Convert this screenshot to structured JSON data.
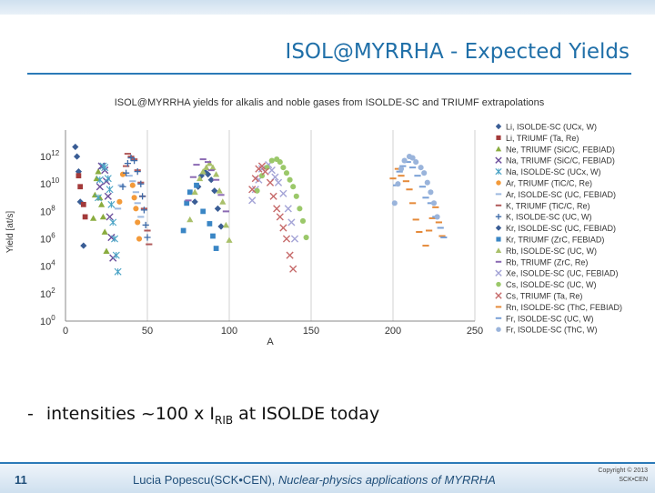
{
  "slide": {
    "title": "ISOL@MYRRHA - Expected Yields",
    "bullet_dash": "-",
    "bullet_text": "intensities ~100 x I",
    "bullet_sub": "RIB",
    "bullet_tail": " at ISOLDE today",
    "slide_number": "11",
    "footer_author": "Lucia Popescu(SCK•CEN),",
    "footer_subject": " Nuclear-physics applications of MYRRHA",
    "copyright_line1": "Copyright © 2013",
    "copyright_line2": "SCK•CEN"
  },
  "colors": {
    "accent": "#2b7ab8",
    "title": "#1f6fa8"
  },
  "chart_data": {
    "type": "scatter",
    "title": "ISOL@MYRRHA yields for alkalis and noble gases from ISOLDE-SC and TRIUMF extrapolations",
    "xlabel": "A",
    "ylabel": "Yield [at/s]",
    "xlim": [
      0,
      250
    ],
    "ylim": [
      0,
      13
    ],
    "x_ticks": [
      0,
      50,
      100,
      150,
      200,
      250
    ],
    "y_ticks": [
      {
        "exp": 0,
        "label": "10",
        "sup": "0"
      },
      {
        "exp": 2,
        "label": "10",
        "sup": "2"
      },
      {
        "exp": 4,
        "label": "10",
        "sup": "4"
      },
      {
        "exp": 6,
        "label": "10",
        "sup": "6"
      },
      {
        "exp": 8,
        "label": "10",
        "sup": "8"
      },
      {
        "exp": 10,
        "label": "10",
        "sup": "10"
      },
      {
        "exp": 12,
        "label": "10",
        "sup": "12"
      }
    ],
    "y_scale": "log10",
    "grid": "vertical",
    "legend_position": "right",
    "series": [
      {
        "name": "Li, ISOLDE-SC (UCx, W)",
        "color": "#3a5d95",
        "marker": "diamond",
        "points": [
          [
            6,
            12.7
          ],
          [
            7,
            12.0
          ],
          [
            8,
            10.9
          ],
          [
            9,
            8.7
          ],
          [
            11,
            5.5
          ]
        ]
      },
      {
        "name": "Li, TRIUMF (Ta, Re)",
        "color": "#a33a3a",
        "marker": "square",
        "points": [
          [
            8,
            10.6
          ],
          [
            9,
            9.8
          ],
          [
            11,
            8.5
          ],
          [
            12,
            7.6
          ]
        ]
      },
      {
        "name": "Ne, TRIUMF (SiC/C, FEBIAD)",
        "color": "#8aac3f",
        "marker": "triangle",
        "points": [
          [
            17,
            7.5
          ],
          [
            18,
            9.2
          ],
          [
            19,
            10.4
          ],
          [
            20,
            10.9
          ],
          [
            21,
            9.0
          ],
          [
            22,
            8.5
          ],
          [
            23,
            7.6
          ],
          [
            24,
            6.5
          ],
          [
            25,
            5.1
          ]
        ]
      },
      {
        "name": "Na, TRIUMF (SiC/C, FEBIAD)",
        "color": "#6b4e9b",
        "marker": "x",
        "points": [
          [
            21,
            9.8
          ],
          [
            22,
            11.3
          ],
          [
            24,
            11.0
          ],
          [
            25,
            10.2
          ],
          [
            26,
            9.1
          ],
          [
            27,
            7.6
          ],
          [
            28,
            6.1
          ],
          [
            29,
            4.6
          ]
        ]
      },
      {
        "name": "Na, ISOLDE-SC (UCx, W)",
        "color": "#4aa3c5",
        "marker": "star",
        "points": [
          [
            20,
            9.0
          ],
          [
            21,
            10.3
          ],
          [
            23,
            11.3
          ],
          [
            24,
            11.2
          ],
          [
            26,
            10.4
          ],
          [
            27,
            9.6
          ],
          [
            28,
            8.5
          ],
          [
            29,
            7.2
          ],
          [
            30,
            6.0
          ],
          [
            31,
            4.8
          ],
          [
            32,
            3.6
          ]
        ]
      },
      {
        "name": "Ar, TRIUMF (TiC/C, Re)",
        "color": "#f39a3a",
        "marker": "circle",
        "points": [
          [
            33,
            8.7
          ],
          [
            35,
            10.7
          ],
          [
            41,
            9.9
          ],
          [
            42,
            9.0
          ],
          [
            43,
            8.2
          ],
          [
            44,
            7.2
          ],
          [
            45,
            6.0
          ]
        ]
      },
      {
        "name": "Ar, ISOLDE-SC (UC, FEBIAD)",
        "color": "#9db9e0",
        "marker": "dash",
        "points": [
          [
            32,
            8.2
          ],
          [
            34,
            9.9
          ],
          [
            39,
            10.6
          ],
          [
            41,
            10.2
          ],
          [
            43,
            9.4
          ],
          [
            44,
            8.6
          ],
          [
            46,
            7.6
          ]
        ]
      },
      {
        "name": "K, TRIUMF (TiC/C, Re)",
        "color": "#b15a5a",
        "marker": "dash",
        "points": [
          [
            37,
            11.3
          ],
          [
            38,
            12.2
          ],
          [
            40,
            12.0
          ],
          [
            42,
            11.8
          ],
          [
            44,
            11.0
          ],
          [
            46,
            10.1
          ],
          [
            47,
            9.1
          ],
          [
            48,
            8.2
          ],
          [
            50,
            6.6
          ],
          [
            51,
            5.6
          ]
        ]
      },
      {
        "name": "K, ISOLDE-SC (UC, W)",
        "color": "#3d6aa8",
        "marker": "plus",
        "points": [
          [
            35,
            9.8
          ],
          [
            37,
            10.8
          ],
          [
            38,
            11.5
          ],
          [
            40,
            11.9
          ],
          [
            42,
            11.7
          ],
          [
            44,
            10.9
          ],
          [
            46,
            10.0
          ],
          [
            47,
            9.1
          ],
          [
            48,
            8.1
          ],
          [
            49,
            7.0
          ],
          [
            50,
            6.1
          ]
        ]
      },
      {
        "name": "Kr, ISOLDE-SC (UC, FEBIAD)",
        "color": "#3a5d95",
        "marker": "diamond",
        "points": [
          [
            79,
            8.7
          ],
          [
            81,
            9.8
          ],
          [
            83,
            10.6
          ],
          [
            85,
            10.9
          ],
          [
            87,
            10.7
          ],
          [
            89,
            10.3
          ],
          [
            91,
            9.5
          ],
          [
            93,
            8.2
          ],
          [
            95,
            6.9
          ]
        ]
      },
      {
        "name": "Kr, TRIUMF (ZrC, FEBIAD)",
        "color": "#3a86c5",
        "marker": "square",
        "points": [
          [
            72,
            6.6
          ],
          [
            74,
            8.6
          ],
          [
            76,
            9.4
          ],
          [
            80,
            9.9
          ],
          [
            84,
            8.0
          ],
          [
            88,
            7.1
          ],
          [
            90,
            6.2
          ],
          [
            92,
            5.3
          ]
        ]
      },
      {
        "name": "Rb, ISOLDE-SC (UC, W)",
        "color": "#a9c06a",
        "marker": "triangle",
        "points": [
          [
            76,
            7.4
          ],
          [
            79,
            9.4
          ],
          [
            82,
            10.4
          ],
          [
            84,
            10.9
          ],
          [
            86,
            11.2
          ],
          [
            88,
            11.5
          ],
          [
            90,
            11.2
          ],
          [
            92,
            10.7
          ],
          [
            94,
            9.5
          ],
          [
            96,
            8.7
          ],
          [
            98,
            7.0
          ],
          [
            100,
            5.9
          ]
        ]
      },
      {
        "name": "Rb, TRIUMF (ZrC, Re)",
        "color": "#8b6ab3",
        "marker": "dash",
        "points": [
          [
            75,
            8.8
          ],
          [
            78,
            10.5
          ],
          [
            80,
            11.4
          ],
          [
            84,
            11.8
          ],
          [
            87,
            11.6
          ],
          [
            89,
            11.0
          ],
          [
            92,
            10.3
          ],
          [
            95,
            9.2
          ],
          [
            98,
            8.0
          ]
        ]
      },
      {
        "name": "Xe, ISOLDE-SC (UC, FEBIAD)",
        "color": "#a3a3d6",
        "marker": "x",
        "points": [
          [
            114,
            8.8
          ],
          [
            116,
            9.6
          ],
          [
            118,
            10.3
          ],
          [
            120,
            11.1
          ],
          [
            124,
            11.4
          ],
          [
            126,
            11.0
          ],
          [
            128,
            10.5
          ],
          [
            130,
            10.1
          ],
          [
            133,
            9.3
          ],
          [
            136,
            8.2
          ],
          [
            138,
            7.2
          ],
          [
            140,
            6.0
          ]
        ]
      },
      {
        "name": "Cs, ISOLDE-SC (UC, W)",
        "color": "#9bc86a",
        "marker": "circle",
        "points": [
          [
            117,
            9.5
          ],
          [
            120,
            10.6
          ],
          [
            123,
            11.2
          ],
          [
            126,
            11.7
          ],
          [
            129,
            11.8
          ],
          [
            131,
            11.6
          ],
          [
            133,
            11.2
          ],
          [
            135,
            10.8
          ],
          [
            137,
            10.3
          ],
          [
            139,
            9.8
          ],
          [
            141,
            9.1
          ],
          [
            143,
            8.2
          ],
          [
            145,
            7.3
          ],
          [
            147,
            6.1
          ]
        ]
      },
      {
        "name": "Cs, TRIUMF (Ta, Re)",
        "color": "#c66a6a",
        "marker": "x",
        "points": [
          [
            114,
            9.6
          ],
          [
            116,
            10.4
          ],
          [
            118,
            11.1
          ],
          [
            120,
            11.3
          ],
          [
            122,
            10.9
          ],
          [
            125,
            10.1
          ],
          [
            127,
            9.1
          ],
          [
            129,
            8.2
          ],
          [
            131,
            7.6
          ],
          [
            133,
            6.8
          ],
          [
            135,
            6.0
          ],
          [
            137,
            4.8
          ],
          [
            139,
            3.8
          ]
        ]
      },
      {
        "name": "Rn, ISOLDE-SC (ThC, FEBIAD)",
        "color": "#e58a3a",
        "marker": "dash",
        "points": [
          [
            200,
            10.4
          ],
          [
            203,
            11.1
          ],
          [
            205,
            10.6
          ],
          [
            208,
            10.2
          ],
          [
            210,
            9.6
          ],
          [
            212,
            8.6
          ],
          [
            214,
            7.4
          ],
          [
            216,
            6.5
          ],
          [
            220,
            5.5
          ],
          [
            222,
            6.6
          ],
          [
            224,
            7.5
          ],
          [
            226,
            8.3
          ],
          [
            228,
            7.2
          ],
          [
            230,
            6.2
          ]
        ]
      },
      {
        "name": "Fr, ISOLDE-SC (UC, W)",
        "color": "#7aa0d6",
        "marker": "dash",
        "points": [
          [
            202,
            9.9
          ],
          [
            204,
            10.9
          ],
          [
            206,
            11.3
          ],
          [
            209,
            11.6
          ],
          [
            212,
            11.2
          ],
          [
            215,
            10.6
          ],
          [
            218,
            9.8
          ],
          [
            220,
            9.0
          ],
          [
            223,
            8.6
          ],
          [
            226,
            7.6
          ],
          [
            229,
            6.8
          ],
          [
            231,
            6.1
          ]
        ]
      },
      {
        "name": "Fr, ISOLDE-SC (ThC, W)",
        "color": "#9ab4db",
        "marker": "circle",
        "points": [
          [
            201,
            8.6
          ],
          [
            203,
            10.0
          ],
          [
            205,
            11.1
          ],
          [
            207,
            11.7
          ],
          [
            210,
            12.0
          ],
          [
            212,
            11.9
          ],
          [
            214,
            11.6
          ],
          [
            217,
            11.2
          ],
          [
            219,
            10.8
          ],
          [
            221,
            10.1
          ],
          [
            223,
            9.4
          ],
          [
            225,
            8.6
          ],
          [
            227,
            7.6
          ]
        ]
      }
    ]
  }
}
